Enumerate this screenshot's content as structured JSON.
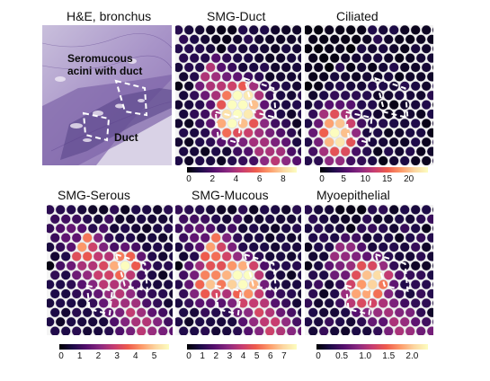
{
  "panels": [
    {
      "key": "he",
      "title": "H&E, bronchus",
      "type": "histology",
      "annotations": [
        "Seromucous",
        "acini with duct",
        "Duct"
      ]
    },
    {
      "key": "smg_duct",
      "title": "SMG-Duct",
      "type": "spatial",
      "ticks": [
        "0",
        "2",
        "4",
        "6",
        "8"
      ],
      "vmax": 9
    },
    {
      "key": "ciliated",
      "title": "Ciliated",
      "type": "spatial",
      "ticks": [
        "0",
        "5",
        "10",
        "15",
        "20"
      ],
      "vmax": 24
    },
    {
      "key": "smg_serous",
      "title": "SMG-Serous",
      "type": "spatial",
      "ticks": [
        "0",
        "1",
        "2",
        "3",
        "4",
        "5"
      ],
      "vmax": 5.7
    },
    {
      "key": "smg_mucous",
      "title": "SMG-Mucous",
      "type": "spatial",
      "ticks": [
        "0",
        "1",
        "2",
        "3",
        "4",
        "5",
        "6",
        "7"
      ],
      "vmax": 7.8
    },
    {
      "key": "myoepithelial",
      "title": "Myoepithelial",
      "type": "spatial",
      "ticks": [
        "0",
        "0.5",
        "1.0",
        "1.5",
        "2.0"
      ],
      "vmax": 2.3
    }
  ],
  "colormap": "magma"
}
